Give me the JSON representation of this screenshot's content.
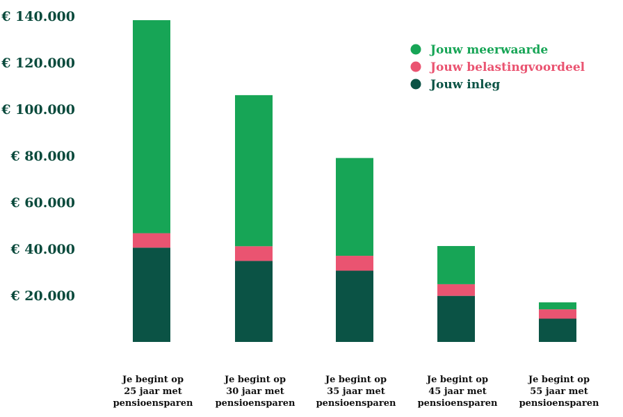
{
  "chart_data": {
    "type": "bar",
    "stacked": true,
    "title": "",
    "xlabel": "",
    "ylabel": "",
    "ylim": [
      0,
      140000
    ],
    "yticks": [
      {
        "value": 20000,
        "label": "€ 20.000"
      },
      {
        "value": 40000,
        "label": "€ 40.000"
      },
      {
        "value": 60000,
        "label": "€ 60.000"
      },
      {
        "value": 80000,
        "label": "€ 80.000"
      },
      {
        "value": 100000,
        "label": "€ 100.000"
      },
      {
        "value": 120000,
        "label": "€ 120.000"
      },
      {
        "value": 140000,
        "label": "€ 140.000"
      }
    ],
    "grid": false,
    "legend_position": "top-right",
    "categories": [
      [
        "Je begint op",
        "25 jaar met",
        "pensioensparen"
      ],
      [
        "Je begint op",
        "30 jaar met",
        "pensioensparen"
      ],
      [
        "Je begint op",
        "35 jaar met",
        "pensioensparen"
      ],
      [
        "Je begint op",
        "45 jaar met",
        "pensioensparen"
      ],
      [
        "Je begint op",
        "55 jaar met",
        "pensioensparen"
      ]
    ],
    "series": [
      {
        "name": "Jouw inleg",
        "color": "#0b5345",
        "values": [
          40500,
          34800,
          30600,
          19800,
          10000
        ]
      },
      {
        "name": "Jouw belastingvoordeel",
        "color": "#ea5471",
        "values": [
          6200,
          6300,
          6400,
          5000,
          4000
        ]
      },
      {
        "name": "Jouw meerwaarde",
        "color": "#17a556",
        "values": [
          91500,
          64900,
          42000,
          16400,
          3000
        ]
      }
    ],
    "legend_order": [
      2,
      1,
      0
    ]
  }
}
